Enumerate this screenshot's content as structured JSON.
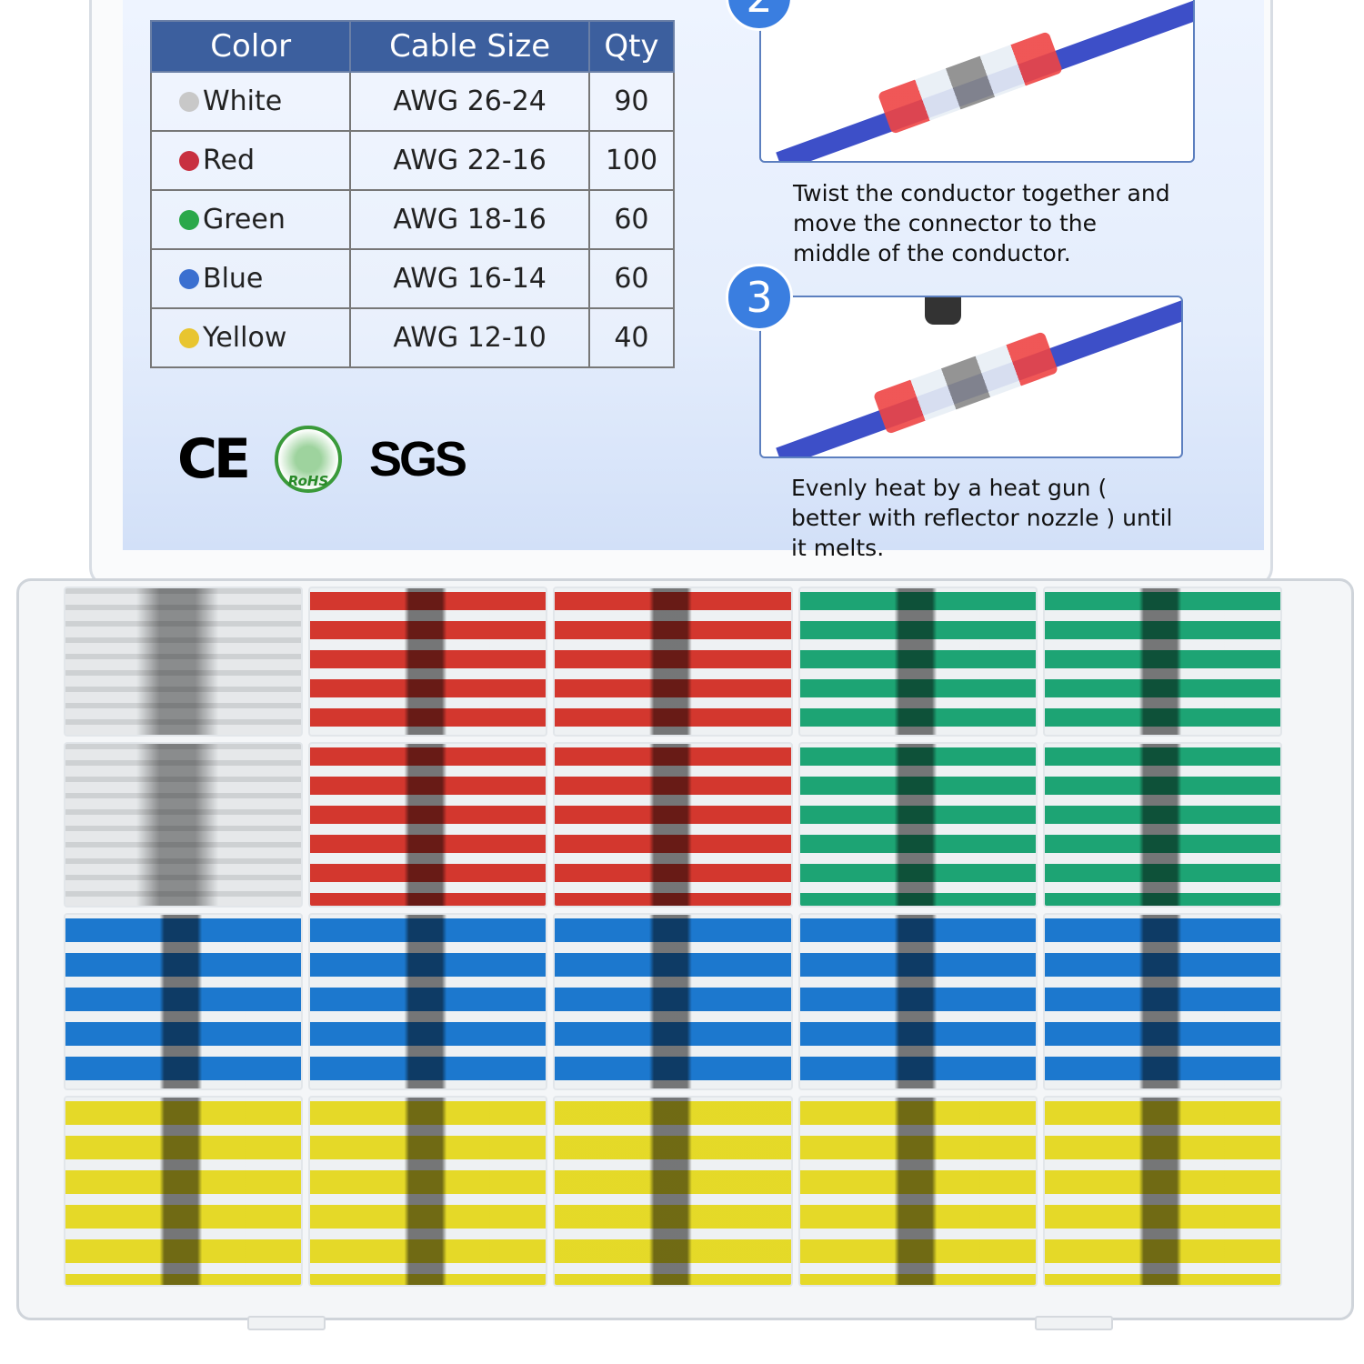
{
  "table": {
    "headers": [
      "Color",
      "Cable Size",
      "Qty"
    ],
    "rows": [
      {
        "color": "White",
        "dot": "#c8c8c8",
        "size": "AWG 26-24",
        "qty": "90"
      },
      {
        "color": "Red",
        "dot": "#c83040",
        "size": "AWG 22-16",
        "qty": "100"
      },
      {
        "color": "Green",
        "dot": "#2aa84a",
        "size": "AWG 18-16",
        "qty": "60"
      },
      {
        "color": "Blue",
        "dot": "#3a6fd0",
        "size": "AWG 16-14",
        "qty": "60"
      },
      {
        "color": "Yellow",
        "dot": "#e8c530",
        "size": "AWG 12-10",
        "qty": "40"
      }
    ]
  },
  "logos": {
    "ce": "CE",
    "rohs": "RoHS",
    "sgs": "SGS"
  },
  "steps": [
    {
      "number": "2",
      "caption": "Twist the conductor together and move the connector to the middle of the conductor."
    },
    {
      "number": "3",
      "caption": "Evenly heat by a heat gun ( better with reflector nozzle ) until it melts."
    }
  ],
  "tray_rows": [
    {
      "colors": [
        "#ffffff",
        "#e23a30",
        "#e23a30",
        "#1fae7a",
        "#1fae7a"
      ]
    },
    {
      "colors": [
        "#ffffff",
        "#e23a30",
        "#e23a30",
        "#1fae7a",
        "#1fae7a"
      ]
    },
    {
      "colors": [
        "#1e7fd8",
        "#1e7fd8",
        "#1e7fd8",
        "#1e7fd8",
        "#1e7fd8"
      ]
    },
    {
      "colors": [
        "#f5e62a",
        "#f5e62a",
        "#f5e62a",
        "#f5e62a",
        "#f5e62a"
      ]
    }
  ]
}
